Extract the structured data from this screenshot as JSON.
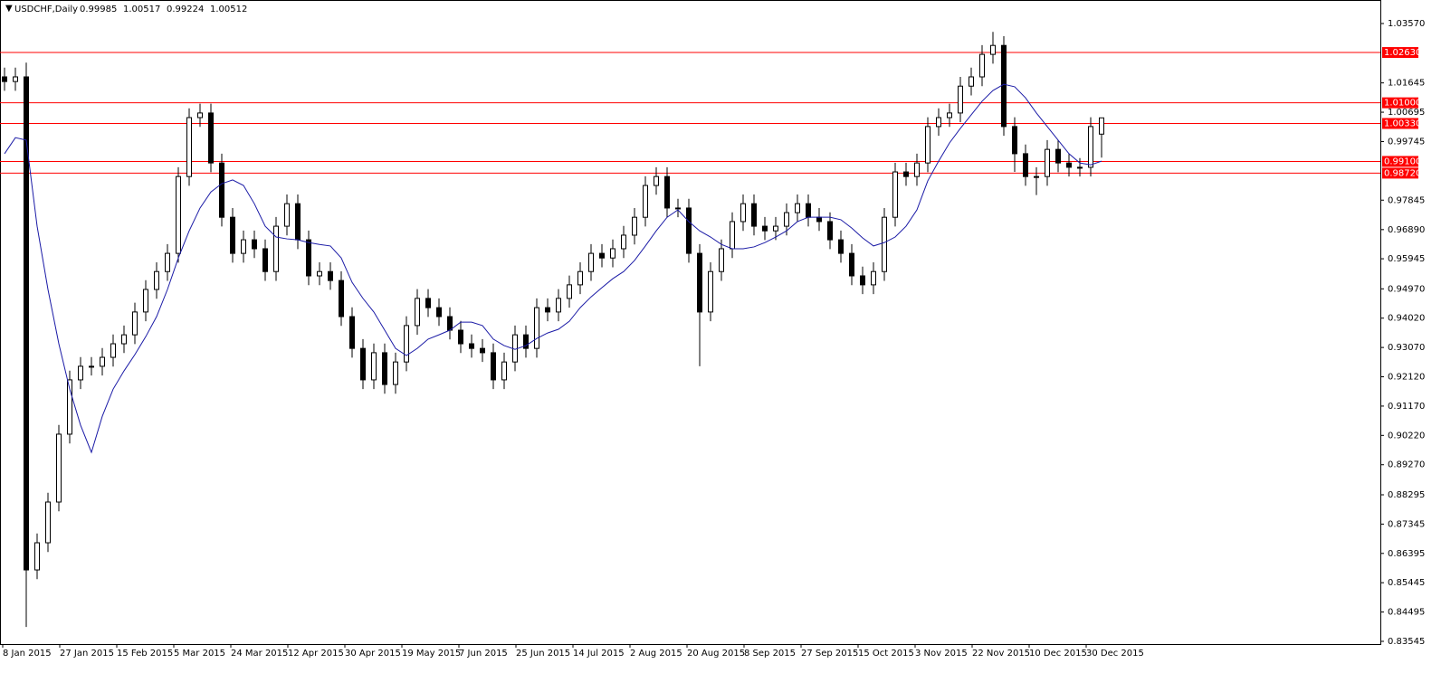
{
  "chart_data": {
    "type": "candlestick",
    "title": "USDCHF,Daily",
    "ylim": [
      0.83457,
      1.04332
    ],
    "yticks": [
      {
        "value": 1.0357,
        "label": "1.03570"
      },
      {
        "value": 1.01645,
        "label": "1.01645"
      },
      {
        "value": 1.00695,
        "label": "1.00695"
      },
      {
        "value": 0.99745,
        "label": "0.99745"
      },
      {
        "value": 0.97845,
        "label": "0.97845"
      },
      {
        "value": 0.9689,
        "label": "0.96890"
      },
      {
        "value": 0.95945,
        "label": "0.95945"
      },
      {
        "value": 0.9497,
        "label": "0.94970"
      },
      {
        "value": 0.9402,
        "label": "0.94020"
      },
      {
        "value": 0.9307,
        "label": "0.93070"
      },
      {
        "value": 0.9212,
        "label": "0.92120"
      },
      {
        "value": 0.9117,
        "label": "0.91170"
      },
      {
        "value": 0.9022,
        "label": "0.90220"
      },
      {
        "value": 0.8927,
        "label": "0.89270"
      },
      {
        "value": 0.88295,
        "label": "0.88295"
      },
      {
        "value": 0.87345,
        "label": "0.87345"
      },
      {
        "value": 0.86395,
        "label": "0.86395"
      },
      {
        "value": 0.85445,
        "label": "0.85445"
      },
      {
        "value": 0.84495,
        "label": "0.84495"
      },
      {
        "value": 0.83545,
        "label": "0.83545"
      }
    ],
    "x_labels": [
      "8 Jan 2015",
      "27 Jan 2015",
      "15 Feb 2015",
      "5 Mar 2015",
      "24 Mar 2015",
      "12 Apr 2015",
      "30 Apr 2015",
      "19 May 2015",
      "7 Jun 2015",
      "25 Jun 2015",
      "14 Jul 2015",
      "2 Aug 2015",
      "20 Aug 2015",
      "8 Sep 2015",
      "27 Sep 2015",
      "15 Oct 2015",
      "3 Nov 2015",
      "22 Nov 2015",
      "10 Dec 2015",
      "30 Dec 2015"
    ],
    "levels": [
      {
        "value": 1.0263,
        "label": "1.02630"
      },
      {
        "value": 1.01,
        "label": "1.01000"
      },
      {
        "value": 1.0033,
        "label": "1.00330"
      },
      {
        "value": 0.991,
        "label": "0.99100"
      },
      {
        "value": 0.9872,
        "label": "0.98720"
      }
    ],
    "level_color": "#ff0000",
    "up_color": "#ffffff",
    "down_color": "#000000",
    "ma_color": "#1a1aa6",
    "ohlc": [
      [
        1.0184,
        1.0214,
        1.0139,
        1.0169
      ],
      [
        1.0169,
        1.0214,
        1.0139,
        1.0184
      ],
      [
        1.0184,
        1.023,
        0.8401,
        0.8586
      ],
      [
        0.8586,
        0.8704,
        0.8556,
        0.8674
      ],
      [
        0.8674,
        0.8836,
        0.8644,
        0.8806
      ],
      [
        0.8806,
        0.9056,
        0.8776,
        0.9026
      ],
      [
        0.9026,
        0.9232,
        0.8996,
        0.9202
      ],
      [
        0.9202,
        0.9276,
        0.9172,
        0.9246
      ],
      [
        0.9246,
        0.9276,
        0.9216,
        0.9246
      ],
      [
        0.9246,
        0.9305,
        0.9216,
        0.9275
      ],
      [
        0.9275,
        0.9349,
        0.9245,
        0.9319
      ],
      [
        0.9319,
        0.9378,
        0.9289,
        0.9348
      ],
      [
        0.9348,
        0.9452,
        0.9318,
        0.9422
      ],
      [
        0.9422,
        0.9525,
        0.9392,
        0.9495
      ],
      [
        0.9495,
        0.9583,
        0.9465,
        0.9553
      ],
      [
        0.9553,
        0.9642,
        0.9523,
        0.9612
      ],
      [
        0.9612,
        0.9891,
        0.9582,
        0.9861
      ],
      [
        0.9861,
        1.0082,
        0.9831,
        1.0052
      ],
      [
        1.0052,
        1.0097,
        1.0022,
        1.0067
      ],
      [
        1.0067,
        1.0097,
        0.9875,
        0.9905
      ],
      [
        0.9905,
        0.9935,
        0.9699,
        0.9729
      ],
      [
        0.9729,
        0.9759,
        0.9582,
        0.9612
      ],
      [
        0.9612,
        0.9686,
        0.9582,
        0.9656
      ],
      [
        0.9656,
        0.9686,
        0.9597,
        0.9627
      ],
      [
        0.9627,
        0.9657,
        0.9523,
        0.9553
      ],
      [
        0.9553,
        0.973,
        0.9523,
        0.97
      ],
      [
        0.97,
        0.9803,
        0.967,
        0.9773
      ],
      [
        0.9773,
        0.9803,
        0.9626,
        0.9656
      ],
      [
        0.9656,
        0.9686,
        0.9509,
        0.9539
      ],
      [
        0.9539,
        0.9583,
        0.9509,
        0.9553
      ],
      [
        0.9553,
        0.9583,
        0.9494,
        0.9524
      ],
      [
        0.9524,
        0.9554,
        0.9377,
        0.9407
      ],
      [
        0.9407,
        0.9437,
        0.9274,
        0.9304
      ],
      [
        0.9304,
        0.9334,
        0.9172,
        0.9202
      ],
      [
        0.9202,
        0.932,
        0.9172,
        0.929
      ],
      [
        0.929,
        0.932,
        0.9157,
        0.9187
      ],
      [
        0.9187,
        0.929,
        0.9157,
        0.926
      ],
      [
        0.926,
        0.9408,
        0.923,
        0.9378
      ],
      [
        0.9378,
        0.9496,
        0.9348,
        0.9466
      ],
      [
        0.9466,
        0.9496,
        0.9406,
        0.9436
      ],
      [
        0.9436,
        0.9466,
        0.9377,
        0.9407
      ],
      [
        0.9407,
        0.9437,
        0.9333,
        0.9363
      ],
      [
        0.9363,
        0.9393,
        0.9289,
        0.9319
      ],
      [
        0.9319,
        0.9349,
        0.9274,
        0.9304
      ],
      [
        0.9304,
        0.9334,
        0.926,
        0.929
      ],
      [
        0.929,
        0.932,
        0.9172,
        0.9202
      ],
      [
        0.9202,
        0.929,
        0.9172,
        0.926
      ],
      [
        0.926,
        0.9378,
        0.923,
        0.9348
      ],
      [
        0.9348,
        0.9378,
        0.9274,
        0.9304
      ],
      [
        0.9304,
        0.9466,
        0.9274,
        0.9436
      ],
      [
        0.9436,
        0.9466,
        0.9392,
        0.9422
      ],
      [
        0.9422,
        0.9496,
        0.9392,
        0.9466
      ],
      [
        0.9466,
        0.954,
        0.9436,
        0.951
      ],
      [
        0.951,
        0.9583,
        0.948,
        0.9553
      ],
      [
        0.9553,
        0.9642,
        0.9523,
        0.9612
      ],
      [
        0.9612,
        0.9642,
        0.9567,
        0.9597
      ],
      [
        0.9597,
        0.9657,
        0.9567,
        0.9627
      ],
      [
        0.9627,
        0.9701,
        0.9597,
        0.9671
      ],
      [
        0.9671,
        0.9759,
        0.9641,
        0.9729
      ],
      [
        0.9729,
        0.9862,
        0.9699,
        0.9832
      ],
      [
        0.9832,
        0.9891,
        0.9802,
        0.9861
      ],
      [
        0.9861,
        0.9891,
        0.9729,
        0.9759
      ],
      [
        0.9759,
        0.9789,
        0.9729,
        0.9759
      ],
      [
        0.9759,
        0.9789,
        0.9582,
        0.9612
      ],
      [
        0.9612,
        0.9642,
        0.9246,
        0.9422
      ],
      [
        0.9422,
        0.9583,
        0.9392,
        0.9553
      ],
      [
        0.9553,
        0.9657,
        0.9523,
        0.9627
      ],
      [
        0.9627,
        0.9745,
        0.9597,
        0.9715
      ],
      [
        0.9715,
        0.9803,
        0.9685,
        0.9773
      ],
      [
        0.9773,
        0.9803,
        0.967,
        0.97
      ],
      [
        0.97,
        0.973,
        0.9655,
        0.9685
      ],
      [
        0.9685,
        0.973,
        0.9655,
        0.97
      ],
      [
        0.97,
        0.9774,
        0.967,
        0.9744
      ],
      [
        0.9744,
        0.9803,
        0.9714,
        0.9773
      ],
      [
        0.9773,
        0.9803,
        0.9699,
        0.9729
      ],
      [
        0.9729,
        0.9759,
        0.9685,
        0.9715
      ],
      [
        0.9715,
        0.9745,
        0.9626,
        0.9656
      ],
      [
        0.9656,
        0.9686,
        0.9582,
        0.9612
      ],
      [
        0.9612,
        0.9642,
        0.9509,
        0.9539
      ],
      [
        0.9539,
        0.9569,
        0.948,
        0.951
      ],
      [
        0.951,
        0.9583,
        0.948,
        0.9553
      ],
      [
        0.9553,
        0.9759,
        0.9523,
        0.9729
      ],
      [
        0.9729,
        0.9906,
        0.9699,
        0.9876
      ],
      [
        0.9876,
        0.9906,
        0.9831,
        0.9861
      ],
      [
        0.9861,
        0.9935,
        0.9831,
        0.9905
      ],
      [
        0.9905,
        1.0053,
        0.9875,
        1.0023
      ],
      [
        1.0023,
        1.0082,
        0.9993,
        1.0052
      ],
      [
        1.0052,
        1.0097,
        1.0022,
        1.0067
      ],
      [
        1.0067,
        1.0184,
        1.0037,
        1.0154
      ],
      [
        1.0154,
        1.0214,
        1.0124,
        1.0184
      ],
      [
        1.0184,
        1.0287,
        1.0154,
        1.0257
      ],
      [
        1.0257,
        1.033,
        1.0227,
        1.0286
      ],
      [
        1.0286,
        1.0316,
        0.9993,
        1.0023
      ],
      [
        1.0023,
        1.0053,
        0.9876,
        0.9935
      ],
      [
        0.9935,
        0.9965,
        0.9831,
        0.9861
      ],
      [
        0.9861,
        0.9891,
        0.9801,
        0.9861
      ],
      [
        0.9861,
        0.9979,
        0.9831,
        0.9949
      ],
      [
        0.9949,
        0.9979,
        0.9875,
        0.9905
      ],
      [
        0.9905,
        0.9935,
        0.9861,
        0.9891
      ],
      [
        0.9891,
        0.9921,
        0.9861,
        0.9891
      ],
      [
        0.9891,
        1.0053,
        0.9861,
        1.0023
      ],
      [
        0.99985,
        1.00517,
        0.99224,
        1.00512
      ]
    ],
    "ma": [
      0.9935,
      0.9987,
      0.9979,
      0.97,
      0.9495,
      0.9319,
      0.9172,
      0.9055,
      0.8967,
      0.9084,
      0.9172,
      0.9231,
      0.9284,
      0.9342,
      0.9407,
      0.9495,
      0.9597,
      0.9685,
      0.9759,
      0.9811,
      0.9838,
      0.985,
      0.9832,
      0.9773,
      0.97,
      0.9665,
      0.9659,
      0.9656,
      0.9647,
      0.9641,
      0.9636,
      0.9597,
      0.9518,
      0.9466,
      0.9422,
      0.9363,
      0.9304,
      0.9281,
      0.9304,
      0.9334,
      0.9348,
      0.9363,
      0.9389,
      0.9389,
      0.9378,
      0.9334,
      0.9313,
      0.9301,
      0.9313,
      0.9336,
      0.9354,
      0.9366,
      0.9392,
      0.9436,
      0.9471,
      0.9501,
      0.953,
      0.9553,
      0.9589,
      0.9636,
      0.9685,
      0.9729,
      0.9753,
      0.9715,
      0.9685,
      0.9665,
      0.9641,
      0.9627,
      0.9627,
      0.9633,
      0.9647,
      0.9665,
      0.9685,
      0.9715,
      0.9729,
      0.9729,
      0.9729,
      0.9721,
      0.9694,
      0.9662,
      0.9636,
      0.9647,
      0.9665,
      0.97,
      0.9753,
      0.9847,
      0.9911,
      0.997,
      1.0017,
      1.0061,
      1.0105,
      1.014,
      1.016,
      1.0152,
      1.0116,
      1.0067,
      1.0023,
      0.9979,
      0.9935,
      0.9905,
      0.9899,
      0.9911
    ]
  }
}
